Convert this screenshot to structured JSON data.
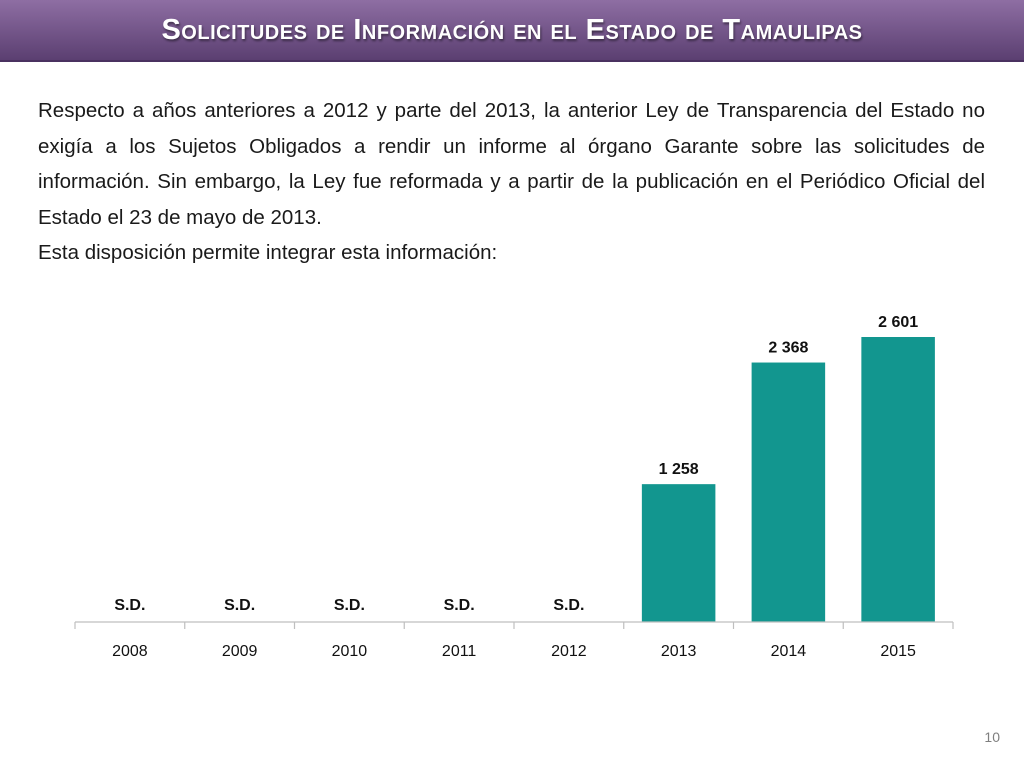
{
  "header": {
    "title": "Solicitudes de Información en el Estado de Tamaulipas",
    "colors": {
      "bar_top": "#8e6ea3",
      "bar_bottom": "#5b3f71",
      "text": "#ffffff"
    }
  },
  "body": {
    "paragraph_1": "Respecto a años anteriores a 2012 y parte del 2013, la anterior Ley de Transparencia del Estado no exigía a los Sujetos Obligados a rendir un informe al órgano Garante sobre las solicitudes de información. Sin embargo, la Ley fue reformada y a partir de la publicación en el Periódico Oficial del Estado el 23 de mayo de 2013.",
    "paragraph_2": "Esta disposición permite integrar esta información:"
  },
  "chart_data": {
    "type": "bar",
    "categories": [
      "2008",
      "2009",
      "2010",
      "2011",
      "2012",
      "2013",
      "2014",
      "2015"
    ],
    "values": [
      null,
      null,
      null,
      null,
      null,
      1258,
      2368,
      2601
    ],
    "data_labels": [
      "S.D.",
      "S.D.",
      "S.D.",
      "S.D.",
      "S.D.",
      "1 258",
      "2 368",
      "2 601"
    ],
    "bar_color": "#12968f",
    "axis_color": "#bfbfbf",
    "ylim": [
      0,
      2601
    ],
    "grid": false,
    "legend": "none"
  },
  "footer": {
    "page_number": "10"
  }
}
